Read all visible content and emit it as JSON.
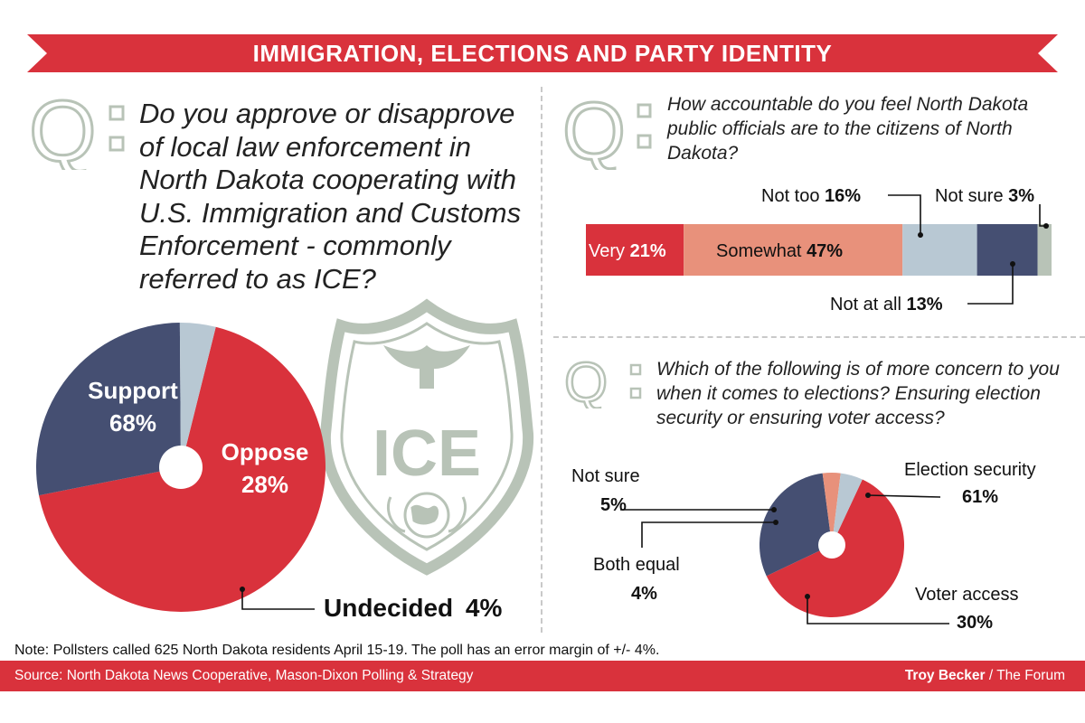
{
  "header": {
    "title": "IMMIGRATION, ELECTIONS AND PARTY IDENTITY"
  },
  "colors": {
    "red": "#d9323c",
    "navy": "#454f72",
    "lightblue": "#b8c8d3",
    "salmon": "#e8917b",
    "gray": "#b8c3b7"
  },
  "icons": {
    "q_letter": "Q",
    "badge": "ice-badge-icon",
    "eagle": "eagle-icon",
    "globe": "globe-icon"
  },
  "q1": {
    "text": "Do you approve or disapprove of local law enforcement in North Dakota cooperating with U.S. Immigration and Customs Enforcement - commonly referred to as ICE?",
    "badge_text": "ICE"
  },
  "q2": {
    "text": "How accountable do you feel North Dakota public officials are to the citizens of North Dakota?"
  },
  "q3": {
    "text": "Which of the following is of more concern to you when it comes to elections? Ensuring election security or ensuring voter access?"
  },
  "chart_data": [
    {
      "type": "pie",
      "labels": [
        "Support",
        "Oppose",
        "Undecided"
      ],
      "values": [
        68,
        28,
        4
      ],
      "value_labels": [
        "68%",
        "28%",
        "4%"
      ],
      "colors": [
        "#d9323c",
        "#454f72",
        "#b8c8d3"
      ]
    },
    {
      "type": "bar",
      "orientation": "horizontal-stacked",
      "categories": [
        "Very",
        "Somewhat",
        "Not too",
        "Not at all",
        "Not sure"
      ],
      "values": [
        21,
        47,
        16,
        13,
        3
      ],
      "value_labels": [
        "21%",
        "47%",
        "16%",
        "13%",
        "3%"
      ],
      "colors": [
        "#d9323c",
        "#e8917b",
        "#b8c8d3",
        "#454f72",
        "#b8c3b7"
      ]
    },
    {
      "type": "pie",
      "labels": [
        "Election security",
        "Voter access",
        "Both equal",
        "Not sure"
      ],
      "values": [
        61,
        30,
        4,
        5
      ],
      "value_labels": [
        "61%",
        "30%",
        "4%",
        "5%"
      ],
      "colors": [
        "#d9323c",
        "#454f72",
        "#e8917b",
        "#b8c8d3"
      ]
    }
  ],
  "footer": {
    "note": "Note: Pollsters called 625 North Dakota residents April 15-19. The poll has an error margin of +/- 4%.",
    "source": "Source: North Dakota News Cooperative, Mason-Dixon Polling & Strategy",
    "credit_name": "Troy Becker",
    "credit_rest": " / The Forum"
  }
}
